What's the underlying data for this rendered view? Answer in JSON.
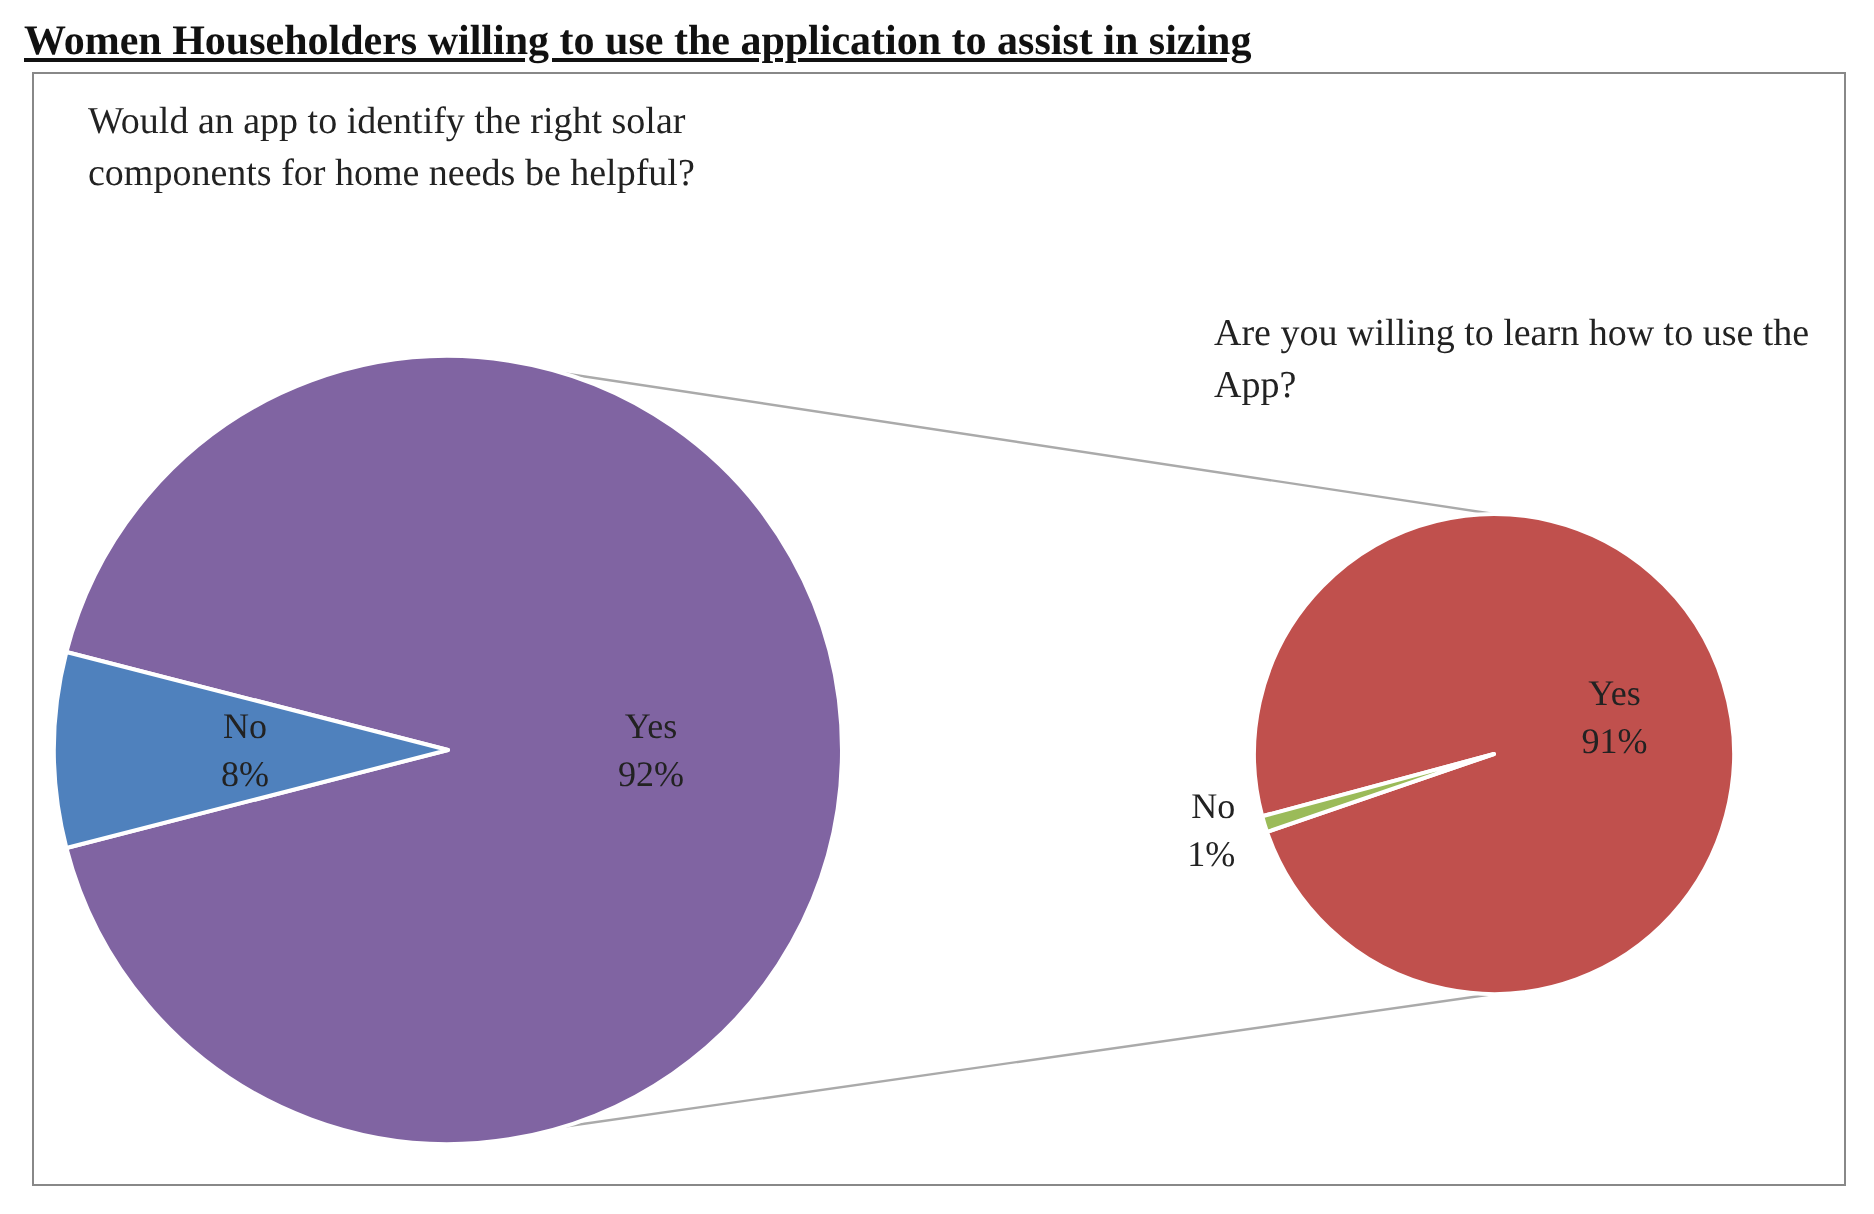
{
  "chart_data": [
    {
      "type": "pie",
      "title": "Women Householders willing to use the application to assist in sizing",
      "subtitle": "Would an app to identify the right solar components for home needs be helpful?",
      "categories": [
        "Yes",
        "No"
      ],
      "values": [
        92,
        8
      ],
      "colors": [
        "#8064a2",
        "#4f81bd"
      ],
      "value_labels": [
        "92%",
        "8%"
      ],
      "legend": false
    },
    {
      "type": "pie",
      "title": "Are you willing to learn how to use the App?",
      "categories": [
        "Yes",
        "No"
      ],
      "values": [
        91,
        1
      ],
      "colors": [
        "#c0504d",
        "#9bbb59"
      ],
      "value_labels": [
        "91%",
        "1%"
      ],
      "legend": false
    }
  ]
}
